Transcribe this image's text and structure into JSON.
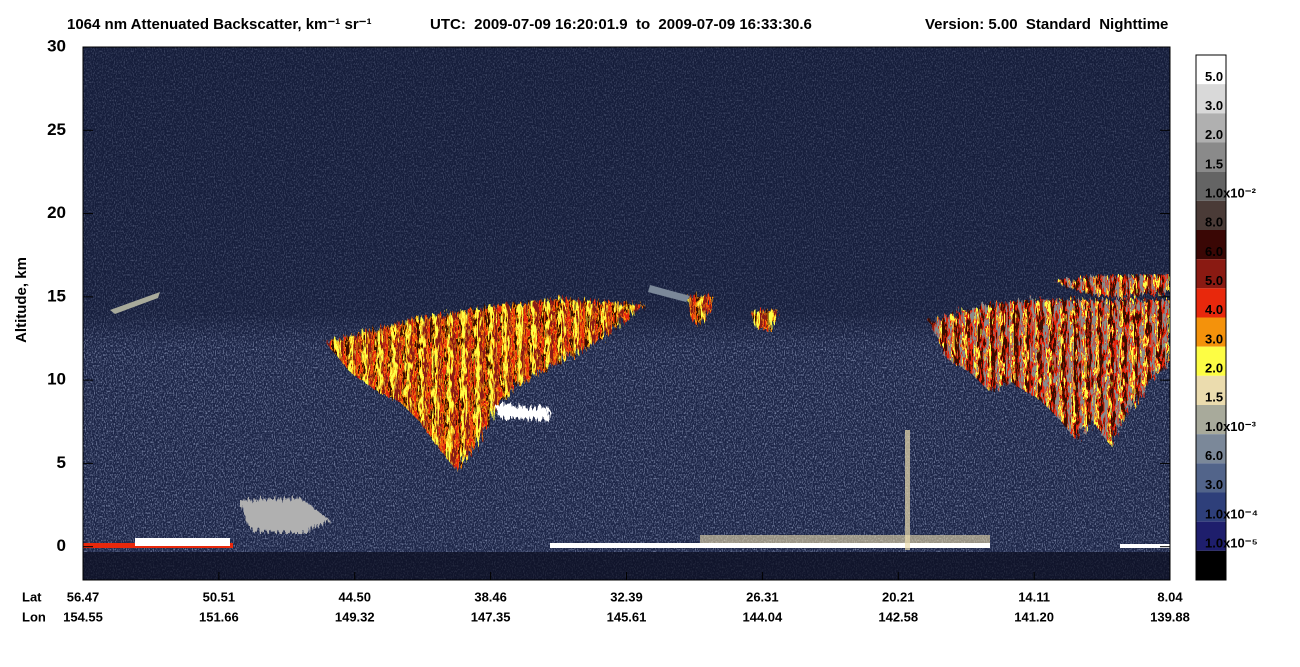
{
  "chart_data": {
    "type": "heatmap",
    "title": "1064 nm Attenuated Backscatter, km⁻¹ sr⁻¹",
    "time_range": "UTC:  2009-07-09 16:20:01.9  to  2009-07-09 16:33:30.6",
    "version": "Version: 5.00  Standard  Nighttime",
    "ylabel": "Altitude, km",
    "ylim": [
      -2,
      30
    ],
    "yticks": [
      0,
      5,
      10,
      15,
      20,
      25,
      30
    ],
    "x_rows": [
      {
        "name": "Lat",
        "values": [
          56.47,
          50.51,
          44.5,
          38.46,
          32.39,
          26.31,
          20.21,
          14.11,
          8.04
        ],
        "value_labels": [
          "56.47",
          "50.51",
          "44.50",
          "38.46",
          "32.39",
          "26.31",
          "20.21",
          "14.11",
          "8.04"
        ]
      },
      {
        "name": "Lon",
        "values": [
          154.55,
          151.66,
          149.32,
          147.35,
          145.61,
          144.04,
          142.58,
          141.2,
          139.88
        ],
        "value_labels": [
          "154.55",
          "151.66",
          "149.32",
          "147.35",
          "145.61",
          "144.04",
          "142.58",
          "141.20",
          "139.88"
        ]
      }
    ],
    "colorbar": {
      "colors": [
        "#ffffff",
        "#d9d9d9",
        "#b0b0b0",
        "#8a8a8a",
        "#646464",
        "#4a3b37",
        "#3a0705",
        "#8a1a12",
        "#e8280c",
        "#f4920b",
        "#fdfd44",
        "#ebdcae",
        "#a8aa9b",
        "#7b8899",
        "#52648a",
        "#2e3f7a",
        "#1e1e6c",
        "#000000"
      ],
      "labels": [
        "5.0",
        "3.0",
        "2.0",
        "1.5",
        "1.0x10⁻²",
        "8.0",
        "6.0",
        "5.0",
        "4.0",
        "3.0",
        "2.0",
        "1.5",
        "1.0x10⁻³",
        "6.0",
        "3.0",
        "1.0x10⁻⁴",
        "1.0x10⁻⁵"
      ]
    }
  }
}
